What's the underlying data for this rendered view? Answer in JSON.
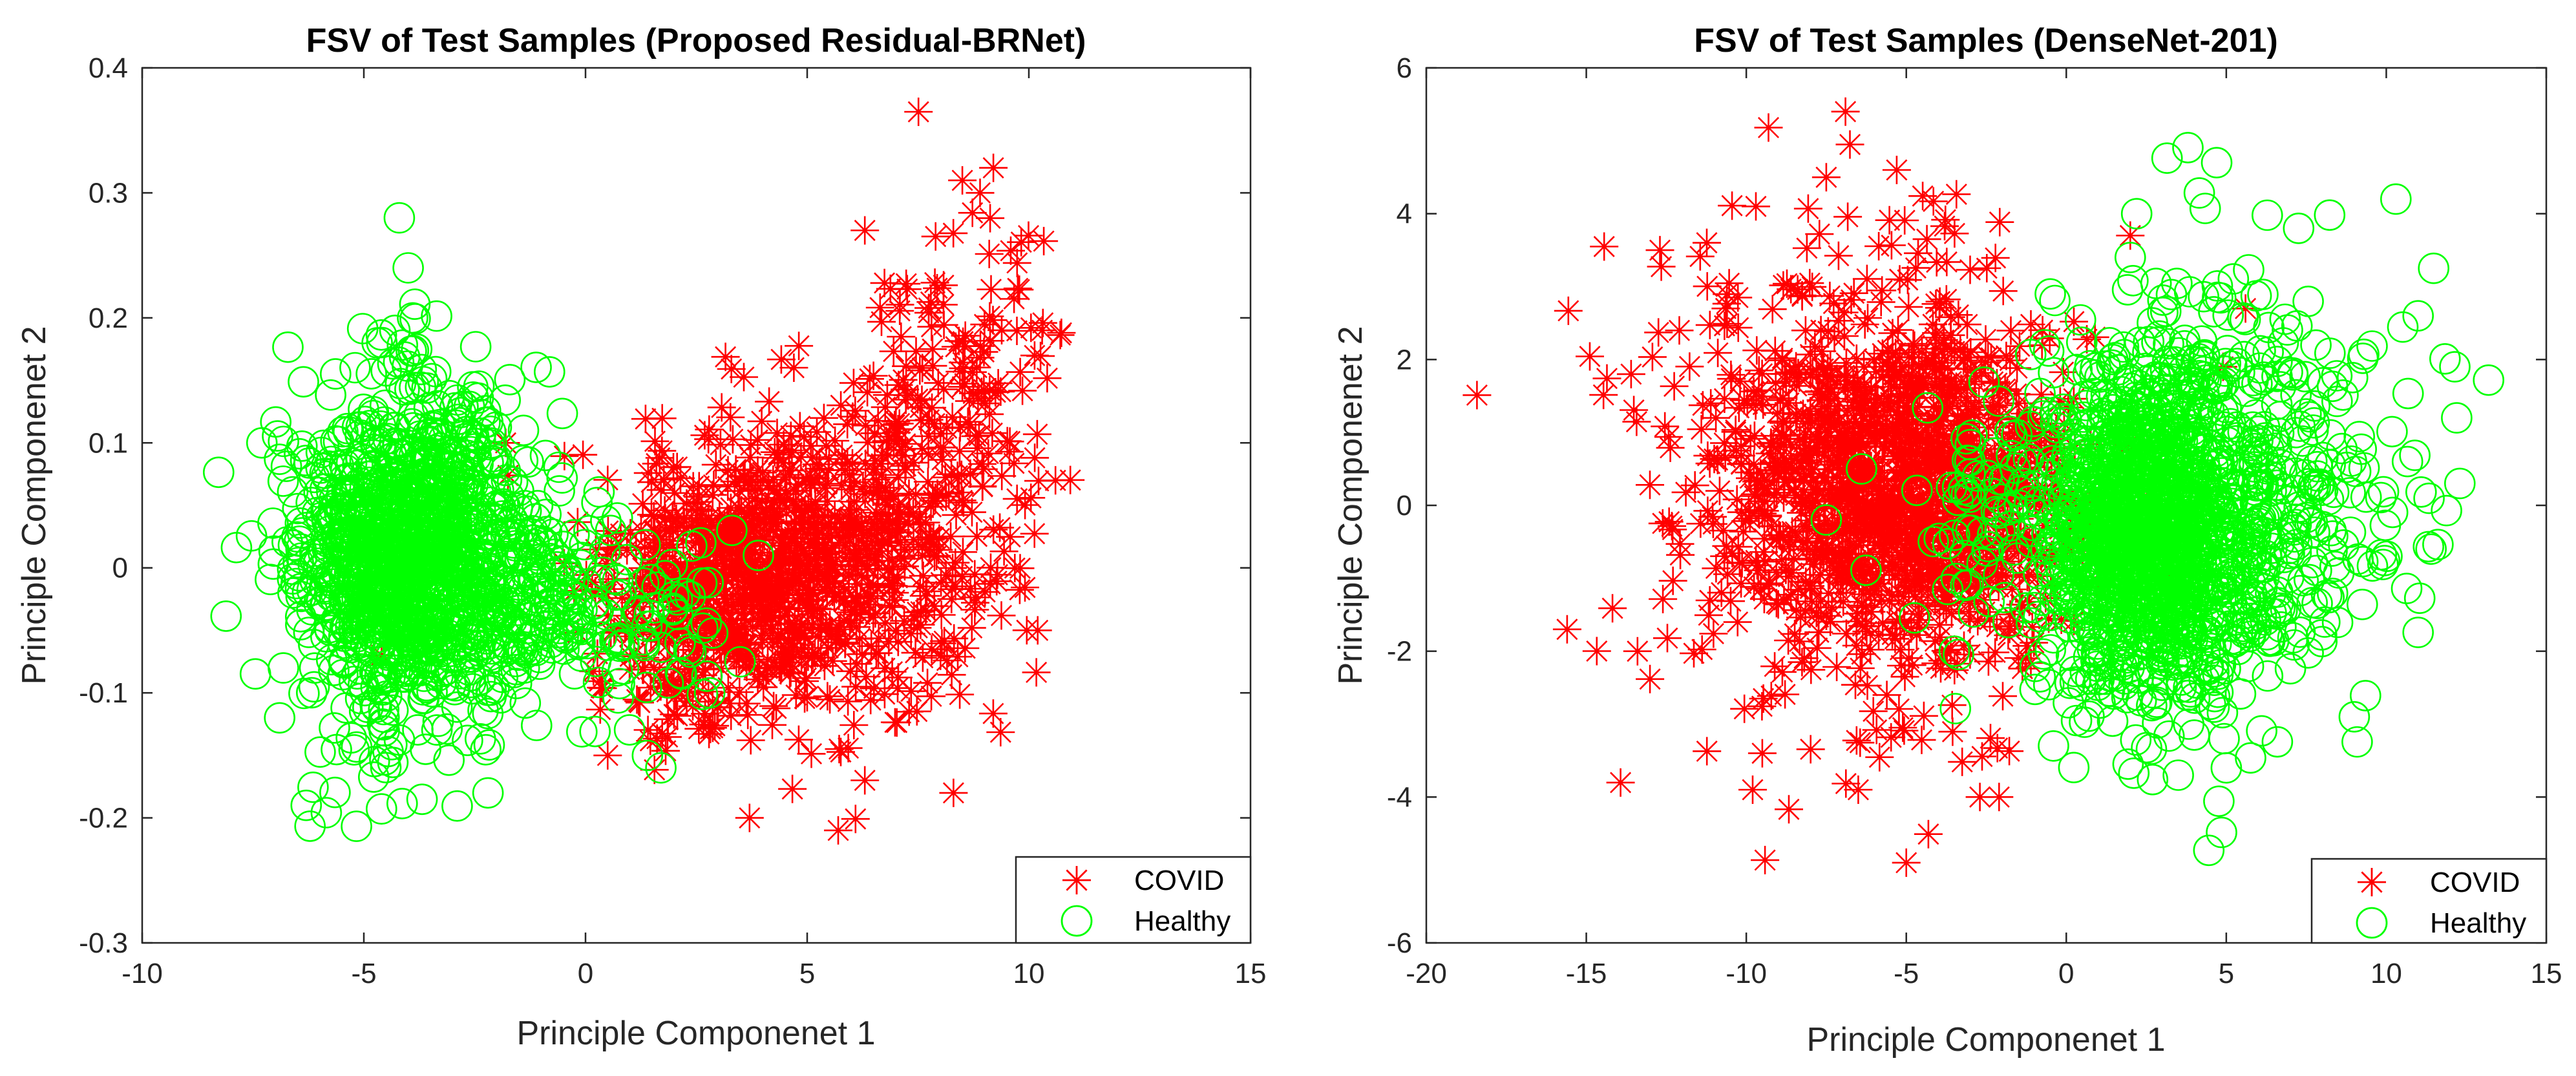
{
  "chart_data": [
    {
      "type": "scatter",
      "title": "FSV of Test Samples (Proposed Residual-BRNet)",
      "xlabel": "Principle Componenet 1",
      "ylabel": "Principle Componenet 2",
      "xlim": [
        -10,
        15
      ],
      "ylim": [
        -0.3,
        0.4
      ],
      "xticks": [
        -10,
        -5,
        0,
        5,
        10,
        15
      ],
      "xtick_labels": [
        "-10",
        "-5",
        "0",
        "5",
        "10",
        "15"
      ],
      "yticks": [
        -0.3,
        -0.2,
        -0.1,
        0,
        0.1,
        0.2,
        0.3,
        0.4
      ],
      "ytick_labels": [
        "-0.3",
        "-0.2",
        "-0.1",
        "0",
        "0.1",
        "0.2",
        "0.3",
        "0.4"
      ],
      "grid": false,
      "legend_position": "bottom-right",
      "series": [
        {
          "name": "COVID",
          "marker": "asterisk",
          "color": "#ff0000",
          "seed": 11,
          "clusters": [
            {
              "n": 750,
              "cx": 3.8,
              "cy": -0.005,
              "sx": 1.6,
              "sy": 0.055
            },
            {
              "n": 260,
              "cx": 6.8,
              "cy": 0.045,
              "sx": 1.5,
              "sy": 0.075
            },
            {
              "n": 110,
              "cx": 8.6,
              "cy": 0.14,
              "sx": 1.0,
              "sy": 0.08
            },
            {
              "n": 60,
              "cx": 1.8,
              "cy": -0.06,
              "sx": 1.0,
              "sy": 0.04
            }
          ],
          "points": [
            [
              8.5,
              0.31
            ],
            [
              9.2,
              0.32
            ],
            [
              8.9,
              0.3
            ],
            [
              6.3,
              0.27
            ],
            [
              10.3,
              0.19
            ],
            [
              10.6,
              0.07
            ],
            [
              10.2,
              -0.05
            ],
            [
              5.7,
              -0.21
            ],
            [
              3.7,
              -0.2
            ],
            [
              6.3,
              -0.17
            ],
            [
              8.3,
              -0.18
            ],
            [
              0.5,
              -0.15
            ],
            [
              -4.6,
              -0.07
            ],
            [
              -1.8,
              0.1
            ]
          ]
        },
        {
          "name": "Healthy",
          "marker": "circle",
          "color": "#00ff00",
          "seed": 29,
          "clusters": [
            {
              "n": 1300,
              "cx": -3.9,
              "cy": 0.01,
              "sx": 1.3,
              "sy": 0.065
            },
            {
              "n": 140,
              "cx": -0.6,
              "cy": -0.03,
              "sx": 0.9,
              "sy": 0.045
            },
            {
              "n": 45,
              "cx": 1.7,
              "cy": -0.05,
              "sx": 0.8,
              "sy": 0.035
            }
          ],
          "points": [
            [
              -4.2,
              0.28
            ],
            [
              -4.0,
              0.24
            ],
            [
              -3.9,
              0.2
            ],
            [
              -4.3,
              0.19
            ],
            [
              -4.7,
              0.18
            ],
            [
              -7.3,
              0.1
            ],
            [
              -6.3,
              -0.19
            ],
            [
              -2.2,
              -0.18
            ],
            [
              1.7,
              -0.16
            ],
            [
              2.8,
              -0.1
            ],
            [
              3.3,
              0.03
            ],
            [
              3.9,
              0.01
            ],
            [
              2.6,
              0.02
            ],
            [
              -1.4,
              0.11
            ],
            [
              -6.9,
              -0.12
            ]
          ]
        }
      ]
    },
    {
      "type": "scatter",
      "title": "FSV of Test Samples (DenseNet-201)",
      "xlabel": "Principle Componenet 1",
      "ylabel": "Principle Componenet 2",
      "xlim": [
        -20,
        15
      ],
      "ylim": [
        -6,
        6
      ],
      "xticks": [
        -20,
        -15,
        -10,
        -5,
        0,
        5,
        10,
        15
      ],
      "xtick_labels": [
        "-20",
        "-15",
        "-10",
        "-5",
        "0",
        "5",
        "10",
        "15"
      ],
      "yticks": [
        -6,
        -4,
        -2,
        0,
        2,
        4,
        6
      ],
      "ytick_labels": [
        "-6",
        "-4",
        "-2",
        "0",
        "2",
        "4",
        "6"
      ],
      "grid": false,
      "legend_position": "bottom-right",
      "series": [
        {
          "name": "COVID",
          "marker": "asterisk",
          "color": "#ff0000",
          "seed": 47,
          "clusters": [
            {
              "n": 900,
              "cx": -5.2,
              "cy": 0.3,
              "sx": 2.4,
              "sy": 1.2
            },
            {
              "n": 300,
              "cx": -8.0,
              "cy": 0.3,
              "sx": 3.0,
              "sy": 1.8
            },
            {
              "n": 200,
              "cx": -3.0,
              "cy": 0.0,
              "sx": 1.8,
              "sy": 1.3
            }
          ],
          "points": [
            [
              -6.9,
              5.4
            ],
            [
              -7.5,
              4.5
            ],
            [
              -5.3,
              4.6
            ],
            [
              -9.7,
              4.1
            ],
            [
              -12.7,
              3.5
            ],
            [
              -13.6,
              1.8
            ],
            [
              -15.6,
              -1.7
            ],
            [
              -13.4,
              -2.0
            ],
            [
              -9.5,
              -3.4
            ],
            [
              -9.8,
              -3.9
            ],
            [
              -5.0,
              -4.9
            ],
            [
              -2.7,
              -4.0
            ],
            [
              -2.1,
              -4.0
            ],
            [
              2.0,
              3.7
            ],
            [
              5.6,
              2.7
            ],
            [
              4.9,
              1.9
            ],
            [
              -6.5,
              -3.9
            ]
          ]
        },
        {
          "name": "Healthy",
          "marker": "circle",
          "color": "#00ff00",
          "seed": 83,
          "clusters": [
            {
              "n": 1200,
              "cx": 2.5,
              "cy": -0.4,
              "sx": 1.6,
              "sy": 1.1
            },
            {
              "n": 450,
              "cx": 5.5,
              "cy": 0.2,
              "sx": 2.6,
              "sy": 1.6
            },
            {
              "n": 90,
              "cx": -2.0,
              "cy": -0.2,
              "sx": 1.5,
              "sy": 1.0
            }
          ],
          "points": [
            [
              4.7,
              4.7
            ],
            [
              2.2,
              4.0
            ],
            [
              10.3,
              4.2
            ],
            [
              12.2,
              1.2
            ],
            [
              12.3,
              0.3
            ],
            [
              11.4,
              -0.6
            ],
            [
              9.0,
              -2.9
            ],
            [
              5.0,
              -3.6
            ],
            [
              3.5,
              -3.7
            ],
            [
              -0.4,
              -3.3
            ],
            [
              2.0,
              3.4
            ],
            [
              -0.5,
              2.9
            ],
            [
              -6.4,
              0.5
            ],
            [
              -7.5,
              -0.2
            ],
            [
              -2.3,
              -0.4
            ],
            [
              -3.5,
              -2.0
            ]
          ]
        }
      ]
    }
  ]
}
